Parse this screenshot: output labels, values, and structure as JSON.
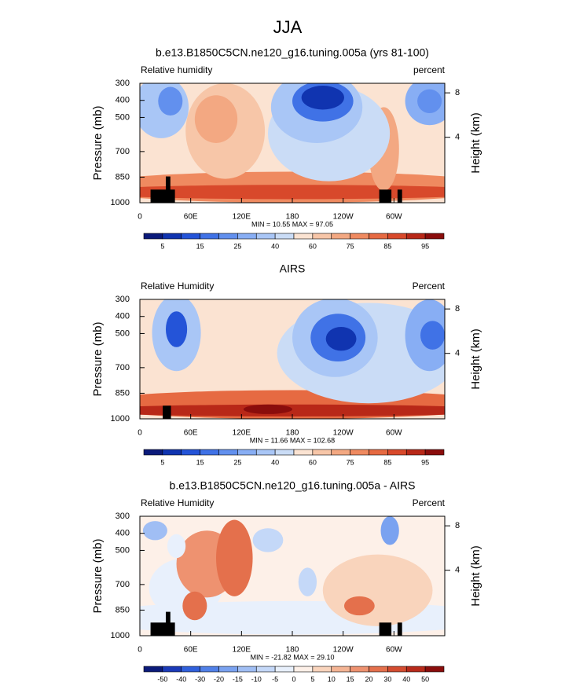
{
  "title": "JJA",
  "chart_data": [
    {
      "type": "contour",
      "title": "b.e13.B1850C5CN.ne120_g16.tuning.005a (yrs 81-100)",
      "left_label": "Relative humidity",
      "right_label": "percent",
      "y_label": "Pressure (mb)",
      "y2_label": "Height (km)",
      "xlim": [
        0,
        360
      ],
      "xticks": [
        0,
        {
          "value": 60,
          "label": "60E"
        },
        {
          "value": 120,
          "label": "120E"
        },
        180,
        {
          "value": 240,
          "label": "120W"
        },
        {
          "value": 300,
          "label": "60W"
        }
      ],
      "ylim": [
        1000,
        300
      ],
      "yticks": [
        300,
        400,
        500,
        700,
        850,
        1000
      ],
      "y2ticks": [
        4,
        8
      ],
      "stats": "MIN =  10.55  MAX =  97.05",
      "colorbar_labels": [
        5,
        15,
        25,
        40,
        60,
        75,
        85,
        95
      ],
      "colors": [
        "#0b1a7a",
        "#1034b0",
        "#2454d8",
        "#4072e6",
        "#6290ee",
        "#88aef4",
        "#a9c6f6",
        "#cadcf6",
        "#fbe3d2",
        "#f7c6a8",
        "#f3a882",
        "#ef8a60",
        "#e66a42",
        "#d8492b",
        "#b82818",
        "#8a0d0c"
      ]
    },
    {
      "type": "contour",
      "title": "AIRS",
      "left_label": "Relative Humidity",
      "right_label": "Percent",
      "y_label": "Pressure (mb)",
      "y2_label": "Height (km)",
      "xlim": [
        0,
        360
      ],
      "xticks": [
        0,
        {
          "value": 60,
          "label": "60E"
        },
        {
          "value": 120,
          "label": "120E"
        },
        180,
        {
          "value": 240,
          "label": "120W"
        },
        {
          "value": 300,
          "label": "60W"
        }
      ],
      "ylim": [
        1000,
        300
      ],
      "yticks": [
        300,
        400,
        500,
        700,
        850,
        1000
      ],
      "y2ticks": [
        4,
        8
      ],
      "stats": "MIN =  11.66  MAX = 102.68",
      "colorbar_labels": [
        5,
        15,
        25,
        40,
        60,
        75,
        85,
        95
      ],
      "colors": [
        "#0b1a7a",
        "#1034b0",
        "#2454d8",
        "#4072e6",
        "#6290ee",
        "#88aef4",
        "#a9c6f6",
        "#cadcf6",
        "#fbe3d2",
        "#f7c6a8",
        "#f3a882",
        "#ef8a60",
        "#e66a42",
        "#d8492b",
        "#b82818",
        "#8a0d0c"
      ]
    },
    {
      "type": "contour",
      "title": "b.e13.B1850C5CN.ne120_g16.tuning.005a - AIRS",
      "left_label": "Relative Humidity",
      "right_label": "Percent",
      "y_label": "Pressure (mb)",
      "y2_label": "Height (km)",
      "xlim": [
        0,
        360
      ],
      "xticks": [
        0,
        {
          "value": 60,
          "label": "60E"
        },
        {
          "value": 120,
          "label": "120E"
        },
        180,
        {
          "value": 240,
          "label": "120W"
        },
        {
          "value": 300,
          "label": "60W"
        }
      ],
      "ylim": [
        1000,
        300
      ],
      "yticks": [
        300,
        400,
        500,
        700,
        850,
        1000
      ],
      "y2ticks": [
        4,
        8
      ],
      "stats": "MIN = -21.82  MAX =  29.10",
      "colorbar_labels": [
        -50,
        -40,
        -30,
        -20,
        -15,
        -10,
        -5,
        0,
        5,
        10,
        15,
        20,
        30,
        40,
        50
      ],
      "colors": [
        "#0b1a7a",
        "#1a3ab8",
        "#3060dc",
        "#5080e8",
        "#7aa2f0",
        "#a0bef4",
        "#c4d8f8",
        "#e8f0fc",
        "#fdf0e8",
        "#f9d4bc",
        "#f4b494",
        "#ee9270",
        "#e4704c",
        "#d44c30",
        "#b82a1a",
        "#8a0d0c"
      ]
    }
  ]
}
